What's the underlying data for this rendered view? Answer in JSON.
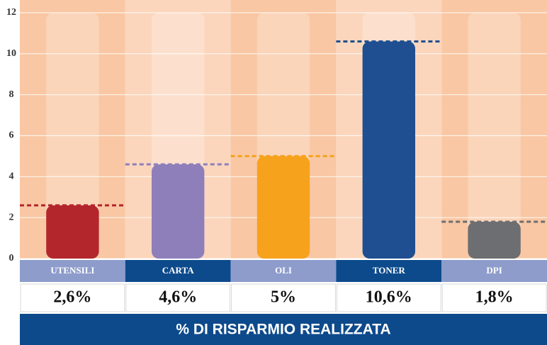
{
  "chart_data": {
    "type": "pictogram-bar",
    "title": "% DI RISPARMIO REALIZZATA",
    "categories": [
      "UTENSILI",
      "CARTA",
      "OLI",
      "TONER",
      "DPI"
    ],
    "values": [
      2.6,
      4.6,
      5,
      10.6,
      1.8
    ],
    "value_labels": [
      "2,6%",
      "4,6%",
      "5%",
      "10,6%",
      "1,8%"
    ],
    "colors": [
      "#b3262c",
      "#8e7fbb",
      "#f6a21c",
      "#1f4f91",
      "#6d6e71"
    ],
    "ylim": [
      0,
      12
    ],
    "yticks": [
      0,
      2,
      4,
      6,
      8,
      10,
      12
    ],
    "grid": true
  }
}
